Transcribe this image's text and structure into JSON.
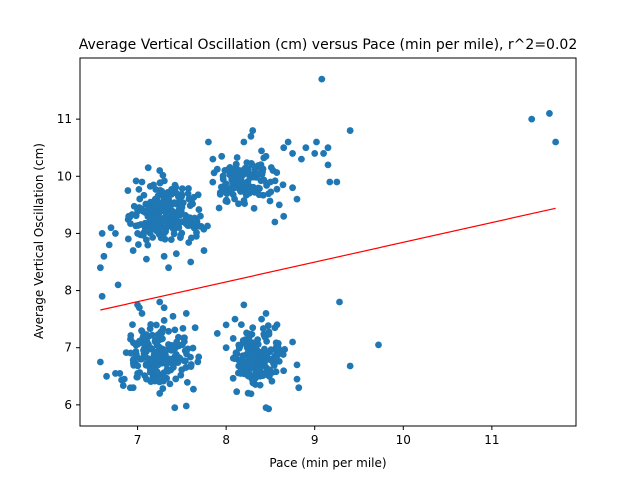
{
  "chart_data": {
    "type": "scatter",
    "title": "Average Vertical Oscillation (cm) versus Pace (min per mile), r^2=0.02",
    "xlabel": "Pace (min per mile)",
    "ylabel": "Average Vertical Oscillation (cm)",
    "xlim": [
      6.35,
      11.95
    ],
    "ylim": [
      5.63,
      12.07
    ],
    "xticks": [
      7,
      8,
      9,
      10,
      11
    ],
    "yticks": [
      6,
      7,
      8,
      9,
      10,
      11
    ],
    "grid": false,
    "colors": {
      "points": "#1f77b4",
      "fit_line": "#ff0000"
    },
    "fit_line": {
      "x": [
        6.58,
        11.72
      ],
      "y": [
        7.66,
        9.44
      ]
    },
    "clusters": [
      {
        "x_range": [
          6.6,
          8.1
        ],
        "y_range": [
          8.4,
          10.2
        ],
        "count": 230
      },
      {
        "x_range": [
          7.6,
          8.9
        ],
        "y_range": [
          9.2,
          10.6
        ],
        "count": 130
      },
      {
        "x_range": [
          6.6,
          7.9
        ],
        "y_range": [
          5.95,
          7.8
        ],
        "count": 190
      },
      {
        "x_range": [
          7.8,
          8.85
        ],
        "y_range": [
          5.95,
          7.7
        ],
        "count": 170
      }
    ],
    "points": [
      {
        "x": 6.58,
        "y": 8.4
      },
      {
        "x": 6.6,
        "y": 9.0
      },
      {
        "x": 6.6,
        "y": 7.9
      },
      {
        "x": 6.58,
        "y": 6.75
      },
      {
        "x": 6.65,
        "y": 6.5
      },
      {
        "x": 6.62,
        "y": 8.6
      },
      {
        "x": 6.7,
        "y": 9.1
      },
      {
        "x": 6.68,
        "y": 8.8
      },
      {
        "x": 6.75,
        "y": 9.0
      },
      {
        "x": 6.78,
        "y": 8.1
      },
      {
        "x": 6.8,
        "y": 6.55
      },
      {
        "x": 6.85,
        "y": 6.45
      },
      {
        "x": 6.92,
        "y": 7.15
      },
      {
        "x": 6.9,
        "y": 9.3
      },
      {
        "x": 7.0,
        "y": 7.75
      },
      {
        "x": 7.02,
        "y": 7.7
      },
      {
        "x": 7.05,
        "y": 7.6
      },
      {
        "x": 7.05,
        "y": 9.9
      },
      {
        "x": 7.12,
        "y": 10.15
      },
      {
        "x": 7.18,
        "y": 9.85
      },
      {
        "x": 7.25,
        "y": 10.1
      },
      {
        "x": 7.3,
        "y": 8.6
      },
      {
        "x": 7.35,
        "y": 8.4
      },
      {
        "x": 7.6,
        "y": 8.5
      },
      {
        "x": 7.75,
        "y": 8.7
      },
      {
        "x": 7.8,
        "y": 10.6
      },
      {
        "x": 7.85,
        "y": 10.3
      },
      {
        "x": 7.95,
        "y": 10.35
      },
      {
        "x": 8.1,
        "y": 10.1
      },
      {
        "x": 8.15,
        "y": 10.1
      },
      {
        "x": 8.2,
        "y": 10.6
      },
      {
        "x": 8.28,
        "y": 10.7
      },
      {
        "x": 8.3,
        "y": 10.8
      },
      {
        "x": 8.45,
        "y": 10.35
      },
      {
        "x": 8.65,
        "y": 10.5
      },
      {
        "x": 8.7,
        "y": 10.6
      },
      {
        "x": 8.75,
        "y": 10.4
      },
      {
        "x": 8.85,
        "y": 10.3
      },
      {
        "x": 8.9,
        "y": 10.5
      },
      {
        "x": 9.0,
        "y": 10.4
      },
      {
        "x": 9.02,
        "y": 10.6
      },
      {
        "x": 9.1,
        "y": 10.4
      },
      {
        "x": 9.15,
        "y": 10.5
      },
      {
        "x": 9.15,
        "y": 10.2
      },
      {
        "x": 9.17,
        "y": 9.9
      },
      {
        "x": 9.25,
        "y": 9.9
      },
      {
        "x": 9.4,
        "y": 10.8
      },
      {
        "x": 9.08,
        "y": 11.7
      },
      {
        "x": 9.28,
        "y": 7.8
      },
      {
        "x": 9.4,
        "y": 6.68
      },
      {
        "x": 9.72,
        "y": 7.05
      },
      {
        "x": 11.45,
        "y": 11.0
      },
      {
        "x": 11.65,
        "y": 11.1
      },
      {
        "x": 11.72,
        "y": 10.6
      },
      {
        "x": 8.2,
        "y": 7.75
      },
      {
        "x": 8.4,
        "y": 7.5
      },
      {
        "x": 8.45,
        "y": 7.6
      },
      {
        "x": 8.3,
        "y": 7.35
      },
      {
        "x": 8.55,
        "y": 7.35
      },
      {
        "x": 8.75,
        "y": 7.1
      },
      {
        "x": 8.8,
        "y": 6.7
      },
      {
        "x": 8.82,
        "y": 6.3
      },
      {
        "x": 8.8,
        "y": 6.45
      },
      {
        "x": 8.45,
        "y": 5.95
      },
      {
        "x": 8.48,
        "y": 5.93
      },
      {
        "x": 7.42,
        "y": 5.95
      },
      {
        "x": 7.55,
        "y": 5.98
      },
      {
        "x": 7.25,
        "y": 6.2
      },
      {
        "x": 7.1,
        "y": 6.45
      },
      {
        "x": 7.3,
        "y": 7.7
      },
      {
        "x": 7.25,
        "y": 7.8
      },
      {
        "x": 7.4,
        "y": 7.55
      },
      {
        "x": 7.55,
        "y": 7.6
      },
      {
        "x": 7.65,
        "y": 7.35
      },
      {
        "x": 7.9,
        "y": 7.25
      },
      {
        "x": 8.0,
        "y": 7.4
      },
      {
        "x": 8.1,
        "y": 7.5
      },
      {
        "x": 8.0,
        "y": 7.0
      },
      {
        "x": 7.15,
        "y": 6.8
      },
      {
        "x": 6.95,
        "y": 6.3
      },
      {
        "x": 6.75,
        "y": 6.55
      },
      {
        "x": 7.0,
        "y": 9.4
      },
      {
        "x": 7.0,
        "y": 9.0
      },
      {
        "x": 6.95,
        "y": 8.7
      },
      {
        "x": 7.1,
        "y": 9.4
      },
      {
        "x": 7.2,
        "y": 9.6
      },
      {
        "x": 7.1,
        "y": 8.55
      },
      {
        "x": 8.5,
        "y": 9.9
      },
      {
        "x": 8.6,
        "y": 9.5
      },
      {
        "x": 8.65,
        "y": 9.3
      },
      {
        "x": 8.75,
        "y": 9.8
      },
      {
        "x": 8.8,
        "y": 9.6
      },
      {
        "x": 8.55,
        "y": 9.2
      }
    ],
    "generated_points_seed": 20240611
  }
}
